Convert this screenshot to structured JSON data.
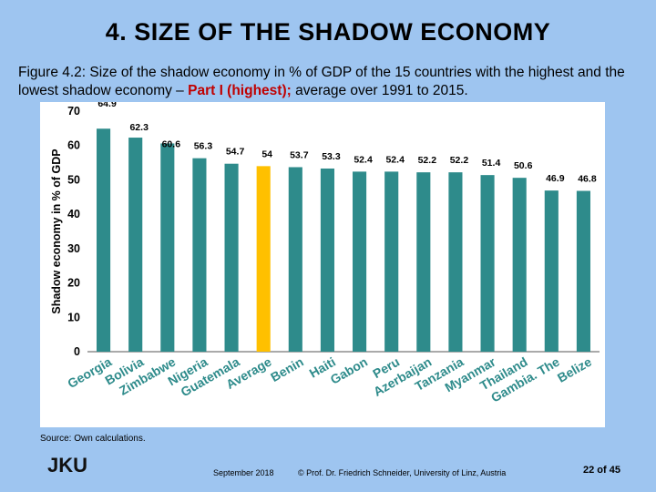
{
  "slide": {
    "title": "4. SIZE OF THE SHADOW ECONOMY",
    "caption_main": "Figure 4.2: Size of the shadow economy in % of GDP of the 15 countries with the highest and the lowest shadow economy – ",
    "caption_highlight": "Part I (highest);",
    "caption_tail": " average over 1991 to 2015.",
    "source": "Source: Own calculations.",
    "logo_text": "JKU",
    "footer_date": "September 2018",
    "footer_credit": "© Prof. Dr. Friedrich Schneider, University of Linz, Austria",
    "page_number": "22 of 45"
  },
  "colors": {
    "bar": "#2e8b8b",
    "highlight_bar": "#ffc000",
    "gridline": "#c8c8c8",
    "background": "#9ec5f0"
  },
  "chart_data": {
    "type": "bar",
    "title": "",
    "xlabel": "",
    "ylabel": "Shadow economy in % of GDP",
    "ylim": [
      0,
      70
    ],
    "yticks": [
      0,
      10,
      20,
      30,
      40,
      50,
      60,
      70
    ],
    "categories": [
      "Georgia",
      "Bolivia",
      "Zimbabwe",
      "Nigeria",
      "Guatemala",
      "Average",
      "Benin",
      "Haiti",
      "Gabon",
      "Peru",
      "Azerbaijan",
      "Tanzania",
      "Myanmar",
      "Thailand",
      "Gambia. The",
      "Belize"
    ],
    "values": [
      64.9,
      62.3,
      60.6,
      56.3,
      54.7,
      54,
      53.7,
      53.3,
      52.4,
      52.4,
      52.2,
      52.2,
      51.4,
      50.6,
      46.9,
      46.8
    ],
    "value_labels": [
      "64.9",
      "62.3",
      "60.6",
      "56.3",
      "54.7",
      "54",
      "53.7",
      "53.3",
      "52.4",
      "52.4",
      "52.2",
      "52.2",
      "51.4",
      "50.6",
      "46.9",
      "46.8"
    ],
    "highlight_category": "Average"
  }
}
